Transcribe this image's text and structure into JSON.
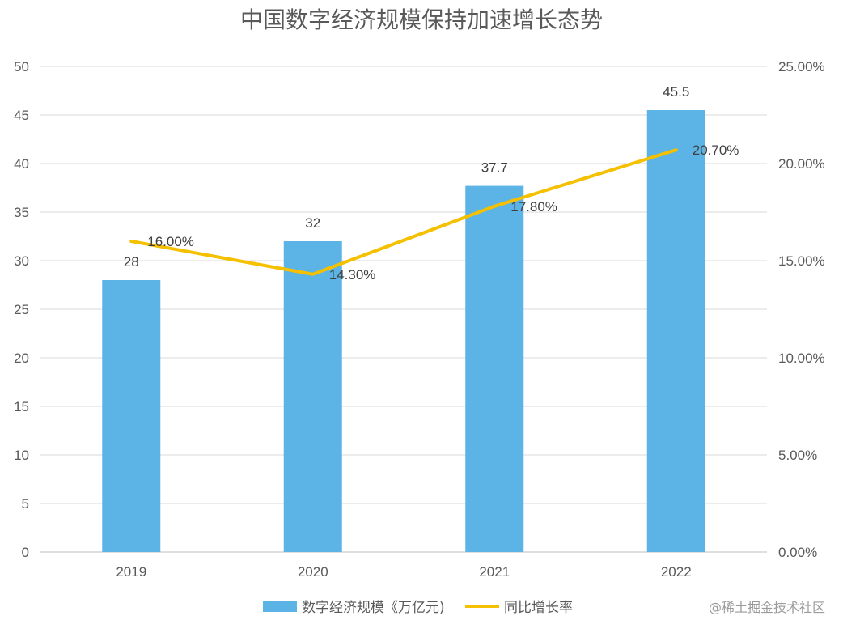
{
  "chart_data": {
    "type": "bar",
    "title": "中国数字经济规模保持加速增长态势",
    "categories": [
      "2019",
      "2020",
      "2021",
      "2022"
    ],
    "series": [
      {
        "name": "数字经济规模《万亿元)",
        "type": "bar",
        "axis": "left",
        "values": [
          28,
          32,
          37.7,
          45.5
        ],
        "labels": [
          "28",
          "32",
          "37.7",
          "45.5"
        ],
        "color": "#5BB3E6"
      },
      {
        "name": "同比增长率",
        "type": "line",
        "axis": "right",
        "values": [
          16.0,
          14.3,
          17.8,
          20.7
        ],
        "labels": [
          "16.00%",
          "14.30%",
          "17.80%",
          "20.70%"
        ],
        "color": "#F5C000"
      }
    ],
    "y_left": {
      "range": [
        0,
        50
      ],
      "ticks": [
        "0",
        "5",
        "10",
        "15",
        "20",
        "25",
        "30",
        "35",
        "40",
        "45",
        "50"
      ]
    },
    "y_right": {
      "range": [
        0,
        25
      ],
      "ticks": [
        "0.00%",
        "5.00%",
        "10.00%",
        "15.00%",
        "20.00%",
        "25.00%"
      ]
    },
    "grid": true,
    "legend": "bottom-center"
  },
  "watermark": "@稀土掘金技术社区",
  "colors": {
    "grid": "#D9D9D9",
    "axis": "#BFBFBF",
    "text": "#595959"
  }
}
